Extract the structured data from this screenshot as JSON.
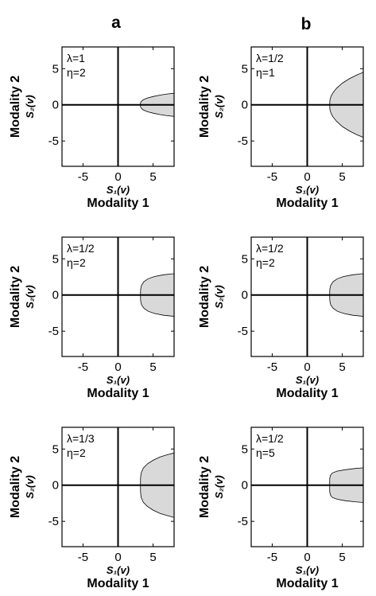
{
  "column_labels": [
    "a",
    "b"
  ],
  "chart_data": [
    {
      "type": "area",
      "column": "a",
      "row": 0,
      "annotation": [
        "λ=1",
        "η=2"
      ],
      "xlabel": "S₁(v)",
      "xlabel2": "Modality 1",
      "ylabel": "S₂(v)",
      "ylabel2": "Modality 2",
      "xlim": [
        -8,
        8
      ],
      "ylim": [
        -8.5,
        8
      ],
      "xticks": [
        -5,
        0,
        5
      ],
      "yticks": [
        5,
        0,
        -5
      ],
      "region": {
        "x_start": 3.2,
        "x_end": 8,
        "upper_edge": [
          [
            3.2,
            0.25
          ],
          [
            3.3,
            0.45
          ],
          [
            3.6,
            0.7
          ],
          [
            4.2,
            0.95
          ],
          [
            5.0,
            1.15
          ],
          [
            6.0,
            1.35
          ],
          [
            7.0,
            1.5
          ],
          [
            8.0,
            1.6
          ]
        ],
        "symmetric": true
      }
    },
    {
      "type": "area",
      "column": "b",
      "row": 0,
      "annotation": [
        "λ=1/2",
        "η=1"
      ],
      "xlabel": "S₁(v)",
      "xlabel2": "Modality 1",
      "ylabel": "S₂(v)",
      "ylabel2": "Modality 2",
      "xlim": [
        -8,
        8
      ],
      "ylim": [
        -8.5,
        8
      ],
      "xticks": [
        -5,
        0,
        5
      ],
      "yticks": [
        5,
        0,
        -5
      ],
      "region": {
        "x_start": 3.2,
        "x_end": 8,
        "upper_edge": [
          [
            3.2,
            0
          ],
          [
            3.25,
            0.7
          ],
          [
            3.4,
            1.2
          ],
          [
            3.7,
            1.7
          ],
          [
            4.2,
            2.3
          ],
          [
            5.0,
            3.0
          ],
          [
            6.0,
            3.6
          ],
          [
            7.0,
            4.1
          ],
          [
            8.0,
            4.5
          ]
        ],
        "symmetric": true
      }
    },
    {
      "type": "area",
      "column": "a",
      "row": 1,
      "annotation": [
        "λ=1/2",
        "η=2"
      ],
      "xlabel": "S₁(v)",
      "xlabel2": "Modality 1",
      "ylabel": "S₂(v)",
      "ylabel2": "Modality 2",
      "xlim": [
        -8,
        8
      ],
      "ylim": [
        -8.5,
        8
      ],
      "xticks": [
        -5,
        0,
        5
      ],
      "yticks": [
        5,
        0,
        -5
      ],
      "region": {
        "x_start": 3.2,
        "x_end": 8,
        "upper_edge": [
          [
            3.2,
            0
          ],
          [
            3.22,
            0.8
          ],
          [
            3.35,
            1.35
          ],
          [
            3.7,
            1.85
          ],
          [
            4.3,
            2.25
          ],
          [
            5.2,
            2.55
          ],
          [
            6.5,
            2.8
          ],
          [
            8.0,
            2.95
          ]
        ],
        "symmetric": true
      }
    },
    {
      "type": "area",
      "column": "b",
      "row": 1,
      "annotation": [
        "λ=1/2",
        "η=2"
      ],
      "xlabel": "S₁(v)",
      "xlabel2": "Modality 1",
      "ylabel": "S₂(v)",
      "ylabel2": "Modality 2",
      "xlim": [
        -8,
        8
      ],
      "ylim": [
        -8.5,
        8
      ],
      "xticks": [
        -5,
        0,
        5
      ],
      "yticks": [
        5,
        0,
        -5
      ],
      "region": {
        "x_start": 3.2,
        "x_end": 8,
        "upper_edge": [
          [
            3.2,
            0
          ],
          [
            3.22,
            0.8
          ],
          [
            3.35,
            1.35
          ],
          [
            3.7,
            1.85
          ],
          [
            4.3,
            2.25
          ],
          [
            5.2,
            2.55
          ],
          [
            6.5,
            2.8
          ],
          [
            8.0,
            2.95
          ]
        ],
        "symmetric": true
      }
    },
    {
      "type": "area",
      "column": "a",
      "row": 2,
      "annotation": [
        "λ=1/3",
        "η=2"
      ],
      "xlabel": "S₁(v)",
      "xlabel2": "Modality 1",
      "ylabel": "S₂(v)",
      "ylabel2": "Modality 2",
      "xlim": [
        -8,
        8
      ],
      "ylim": [
        -8.5,
        8
      ],
      "xticks": [
        -5,
        0,
        5
      ],
      "yticks": [
        5,
        0,
        -5
      ],
      "region": {
        "x_start": 3.2,
        "x_end": 8,
        "upper_edge": [
          [
            3.2,
            0
          ],
          [
            3.21,
            1.0
          ],
          [
            3.3,
            1.7
          ],
          [
            3.6,
            2.35
          ],
          [
            4.2,
            2.95
          ],
          [
            5.0,
            3.45
          ],
          [
            6.0,
            3.9
          ],
          [
            7.0,
            4.2
          ],
          [
            8.0,
            4.45
          ]
        ],
        "symmetric": true
      }
    },
    {
      "type": "area",
      "column": "b",
      "row": 2,
      "annotation": [
        "λ=1/2",
        "η=5"
      ],
      "xlabel": "S₁(v)",
      "xlabel2": "Modality 1",
      "ylabel": "S₂(v)",
      "ylabel2": "Modality 2",
      "xlim": [
        -8,
        8
      ],
      "ylim": [
        -8.5,
        8
      ],
      "xticks": [
        -5,
        0,
        5
      ],
      "yticks": [
        5,
        0,
        -5
      ],
      "region": {
        "x_start": 3.2,
        "x_end": 8,
        "upper_edge": [
          [
            3.2,
            0
          ],
          [
            3.21,
            0.9
          ],
          [
            3.3,
            1.35
          ],
          [
            3.6,
            1.7
          ],
          [
            4.3,
            1.95
          ],
          [
            5.5,
            2.15
          ],
          [
            6.8,
            2.3
          ],
          [
            8.0,
            2.4
          ]
        ],
        "symmetric": true
      }
    }
  ]
}
